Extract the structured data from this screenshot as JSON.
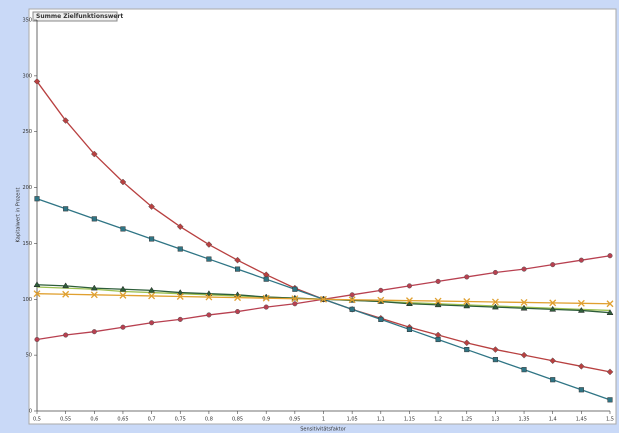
{
  "chart_data": {
    "type": "line",
    "title": "Summe Zielfunktionswert",
    "x_label": "Sensitivitätsfaktor",
    "y_label": "Kapitalwert in Prozent",
    "categories": [
      "0,5",
      "0,55",
      "0,6",
      "0,65",
      "0,7",
      "0,75",
      "0,8",
      "0,85",
      "0,9",
      "0,95",
      "1",
      "1,05",
      "1,1",
      "1,15",
      "1,2",
      "1,25",
      "1,3",
      "1,35",
      "1,4",
      "1,45",
      "1,5"
    ],
    "ylim": [
      0,
      350
    ],
    "yticks": [
      0,
      50,
      100,
      150,
      200,
      250,
      300,
      350
    ],
    "series": [
      {
        "color": "#b84040",
        "marker": "diamond",
        "values": [
          295,
          260,
          230,
          205,
          183,
          165,
          149,
          135,
          122,
          110,
          100,
          91,
          83,
          75,
          68,
          61,
          55,
          50,
          45,
          40,
          35
        ]
      },
      {
        "color": "#2f7585",
        "marker": "square",
        "values": [
          190,
          181,
          172,
          163,
          154,
          145,
          136,
          127,
          118,
          109,
          100,
          91,
          82,
          73,
          64,
          55,
          46,
          37,
          28,
          19,
          10
        ]
      },
      {
        "color": "#b84050",
        "marker": "circle",
        "values": [
          64,
          68,
          71,
          75,
          79,
          82,
          86,
          89,
          93,
          96,
          100,
          104,
          108,
          112,
          116,
          120,
          124,
          127,
          131,
          135,
          139
        ]
      },
      {
        "color": "#9cc050",
        "marker": "none",
        "values": [
          111,
          110,
          109,
          107,
          106,
          105,
          104,
          103,
          102,
          101,
          100,
          99,
          98,
          97,
          96,
          95,
          94,
          93,
          92,
          91,
          90
        ]
      },
      {
        "color": "#2e5e3a",
        "marker": "triangle",
        "values": [
          113,
          112,
          110,
          109,
          108,
          106,
          105,
          104,
          102,
          101,
          100,
          99,
          98,
          96,
          95,
          94,
          93,
          92,
          91,
          90,
          88
        ]
      },
      {
        "color": "#e0a030",
        "marker": "x",
        "values": [
          105,
          104.5,
          104,
          103.5,
          103,
          102.5,
          102,
          101.5,
          101,
          100.5,
          100,
          99.6,
          99.2,
          98.8,
          98.4,
          98,
          97.6,
          97.2,
          96.8,
          96.4,
          96
        ]
      }
    ]
  }
}
